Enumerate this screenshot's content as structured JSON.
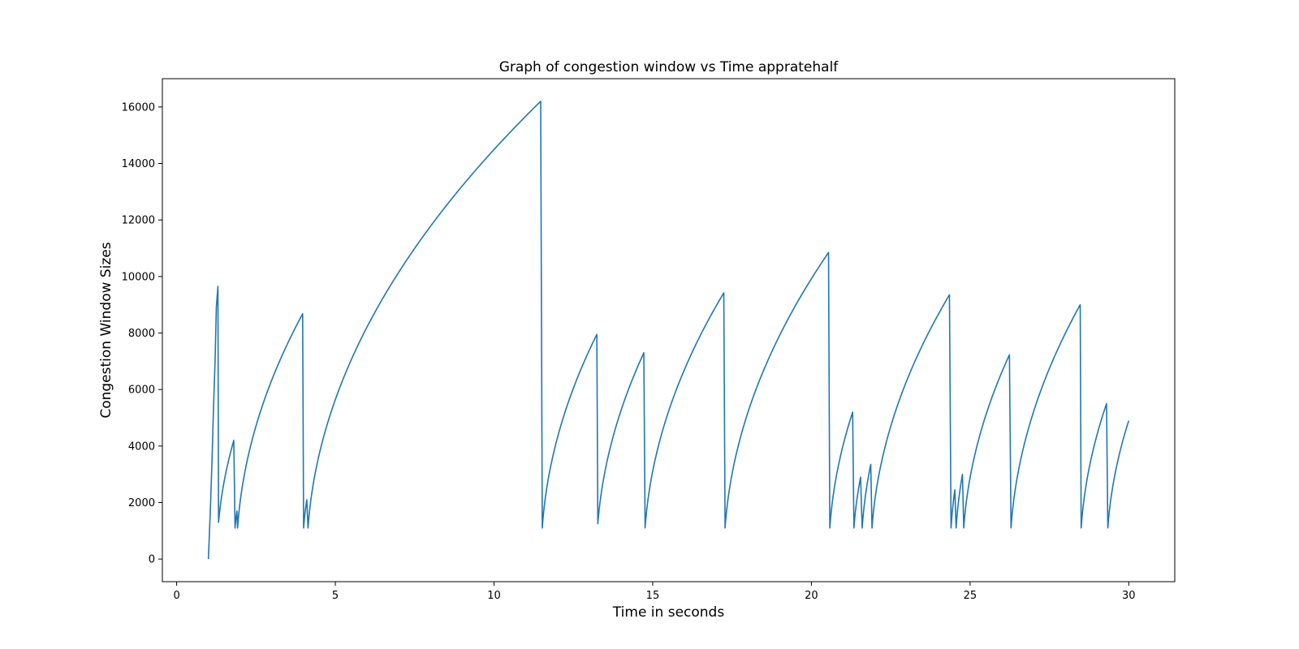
{
  "chart_data": {
    "type": "line",
    "title": "Graph of congestion window vs Time appratehalf",
    "xlabel": "Time in seconds",
    "ylabel": "Congestion Window Sizes",
    "xlim": [
      -0.45,
      31.45
    ],
    "ylim": [
      -800,
      17000
    ],
    "xticks": [
      0,
      5,
      10,
      15,
      20,
      25,
      30
    ],
    "yticks": [
      0,
      2000,
      4000,
      6000,
      8000,
      10000,
      12000,
      14000,
      16000
    ],
    "grid": false,
    "line_color": "#1f77b4",
    "series": [
      {
        "start": [
          1.0,
          0
        ],
        "steps": [
          [
            1.07,
            2000
          ],
          [
            1.12,
            3700
          ],
          [
            1.16,
            5300
          ],
          [
            1.21,
            7000
          ],
          [
            1.25,
            8900
          ],
          [
            1.3,
            9650
          ]
        ],
        "episodes": [
          {
            "t0": 1.32,
            "t1": 1.8,
            "y0": 1300,
            "y1": 4200
          },
          {
            "t0": 1.84,
            "t1": 1.9,
            "y0": 1100,
            "y1": 1700
          },
          {
            "t0": 1.92,
            "t1": 3.97,
            "y0": 1100,
            "y1": 8680
          },
          {
            "t0": 4.0,
            "t1": 4.1,
            "y0": 1100,
            "y1": 2100
          },
          {
            "t0": 4.14,
            "t1": 11.47,
            "y0": 1100,
            "y1": 16200
          },
          {
            "t0": 11.52,
            "t1": 13.24,
            "y0": 1100,
            "y1": 7950
          },
          {
            "t0": 13.27,
            "t1": 14.72,
            "y0": 1250,
            "y1": 7300
          },
          {
            "t0": 14.76,
            "t1": 17.24,
            "y0": 1100,
            "y1": 9420
          },
          {
            "t0": 17.28,
            "t1": 20.54,
            "y0": 1100,
            "y1": 10850
          },
          {
            "t0": 20.58,
            "t1": 21.3,
            "y0": 1100,
            "y1": 5200
          },
          {
            "t0": 21.34,
            "t1": 21.55,
            "y0": 1100,
            "y1": 2900
          },
          {
            "t0": 21.6,
            "t1": 21.87,
            "y0": 1100,
            "y1": 3350
          },
          {
            "t0": 21.91,
            "t1": 24.35,
            "y0": 1100,
            "y1": 9350
          },
          {
            "t0": 24.4,
            "t1": 24.52,
            "y0": 1100,
            "y1": 2450
          },
          {
            "t0": 24.56,
            "t1": 24.76,
            "y0": 1100,
            "y1": 3000
          },
          {
            "t0": 24.8,
            "t1": 26.24,
            "y0": 1100,
            "y1": 7230
          },
          {
            "t0": 26.29,
            "t1": 28.47,
            "y0": 1100,
            "y1": 9000
          },
          {
            "t0": 28.5,
            "t1": 29.3,
            "y0": 1100,
            "y1": 5500
          },
          {
            "t0": 29.34,
            "t1": 30.0,
            "y0": 1100,
            "y1": 4900
          }
        ]
      }
    ]
  }
}
